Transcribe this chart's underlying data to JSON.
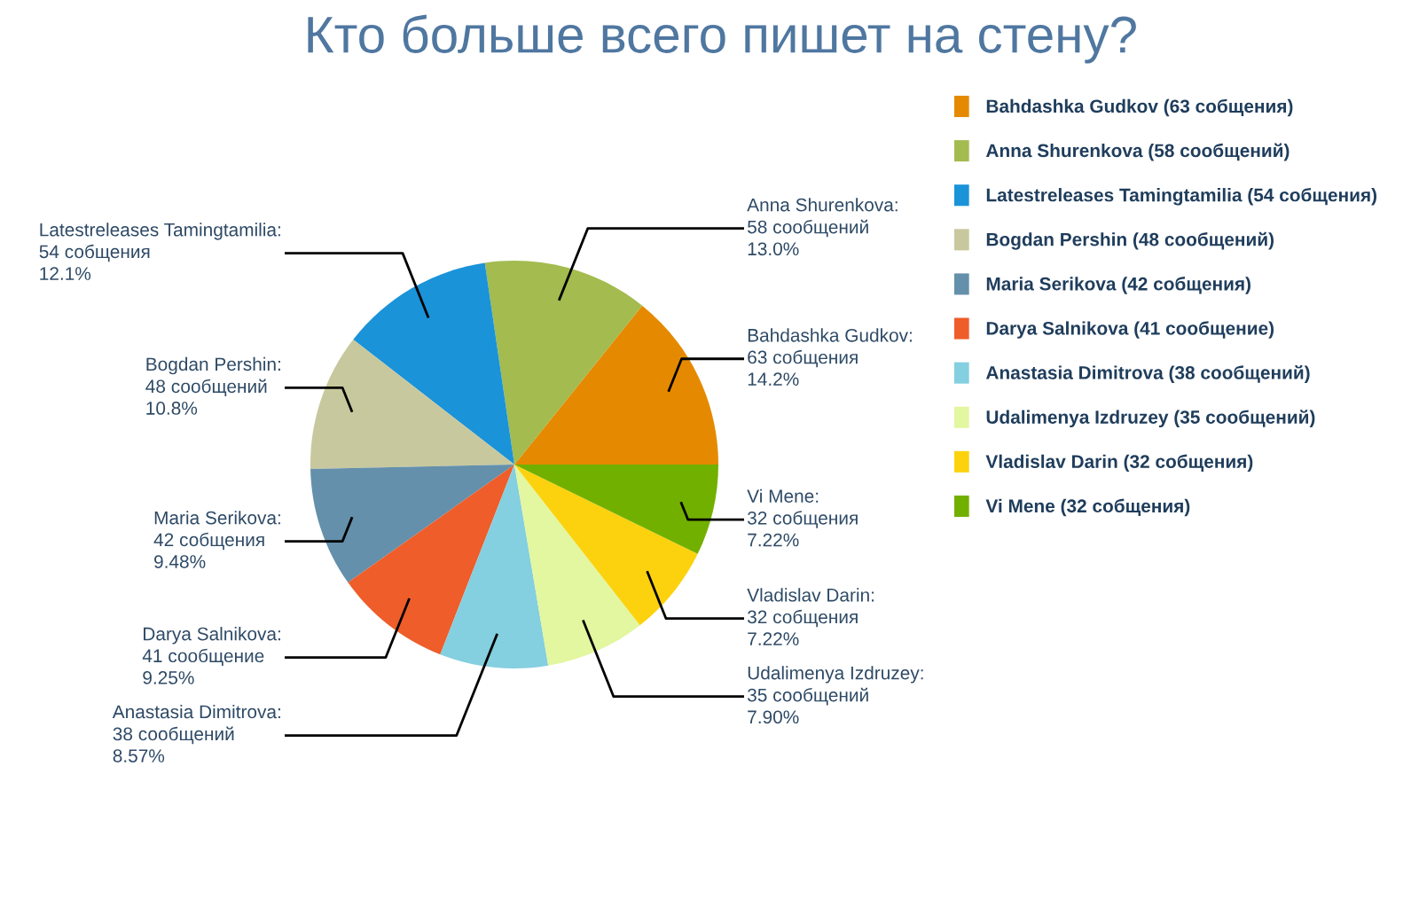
{
  "chart_data": {
    "type": "pie",
    "title": "Кто больше всего пишет на стену?",
    "categories": [
      "Bahdashka Gudkov (63 собщения)",
      "Anna Shurenkova (58 сообщений)",
      "Latestreleases Tamingtamilia (54 собщения)",
      "Bogdan Pershin (48 сообщений)",
      "Maria Serikova (42 собщения)",
      "Darya Salnikova (41 сообщение)",
      "Anastasia Dimitrova (38 сообщений)",
      "Udalimenya Izdruzey (35 сообщений)",
      "Vladislav Darin (32 собщения)",
      "Vi Mene (32 собщения)"
    ],
    "values": [
      63,
      58,
      54,
      48,
      42,
      41,
      38,
      35,
      32,
      32
    ],
    "colors": [
      "#e58a00",
      "#a3bb4f",
      "#1a93d9",
      "#c8c89e",
      "#6490ab",
      "#ee5d2a",
      "#84cfe0",
      "#e3f6a0",
      "#fcd20e",
      "#72b000"
    ],
    "value_labels": [
      "Bahdashka Gudkov:\n63 собщения\n14.2%",
      "Anna Shurenkova:\n58 сообщений\n13.0%",
      "Latestreleases Tamingtamilia:\n54 собщения\n12.1%",
      "Bogdan Pershin:\n48 сообщений\n10.8%",
      "Maria Serikova:\n42 собщения\n9.48%",
      "Darya Salnikova:\n41 сообщение\n9.25%",
      "Anastasia Dimitrova:\n38 сообщений\n8.57%",
      "Udalimenya Izdruzey:\n35 сообщений\n7.90%",
      "Vladislav Darin:\n32 собщения\n7.22%",
      "Vi Mene:\n32 собщения\n7.22%"
    ],
    "legend": "right"
  }
}
